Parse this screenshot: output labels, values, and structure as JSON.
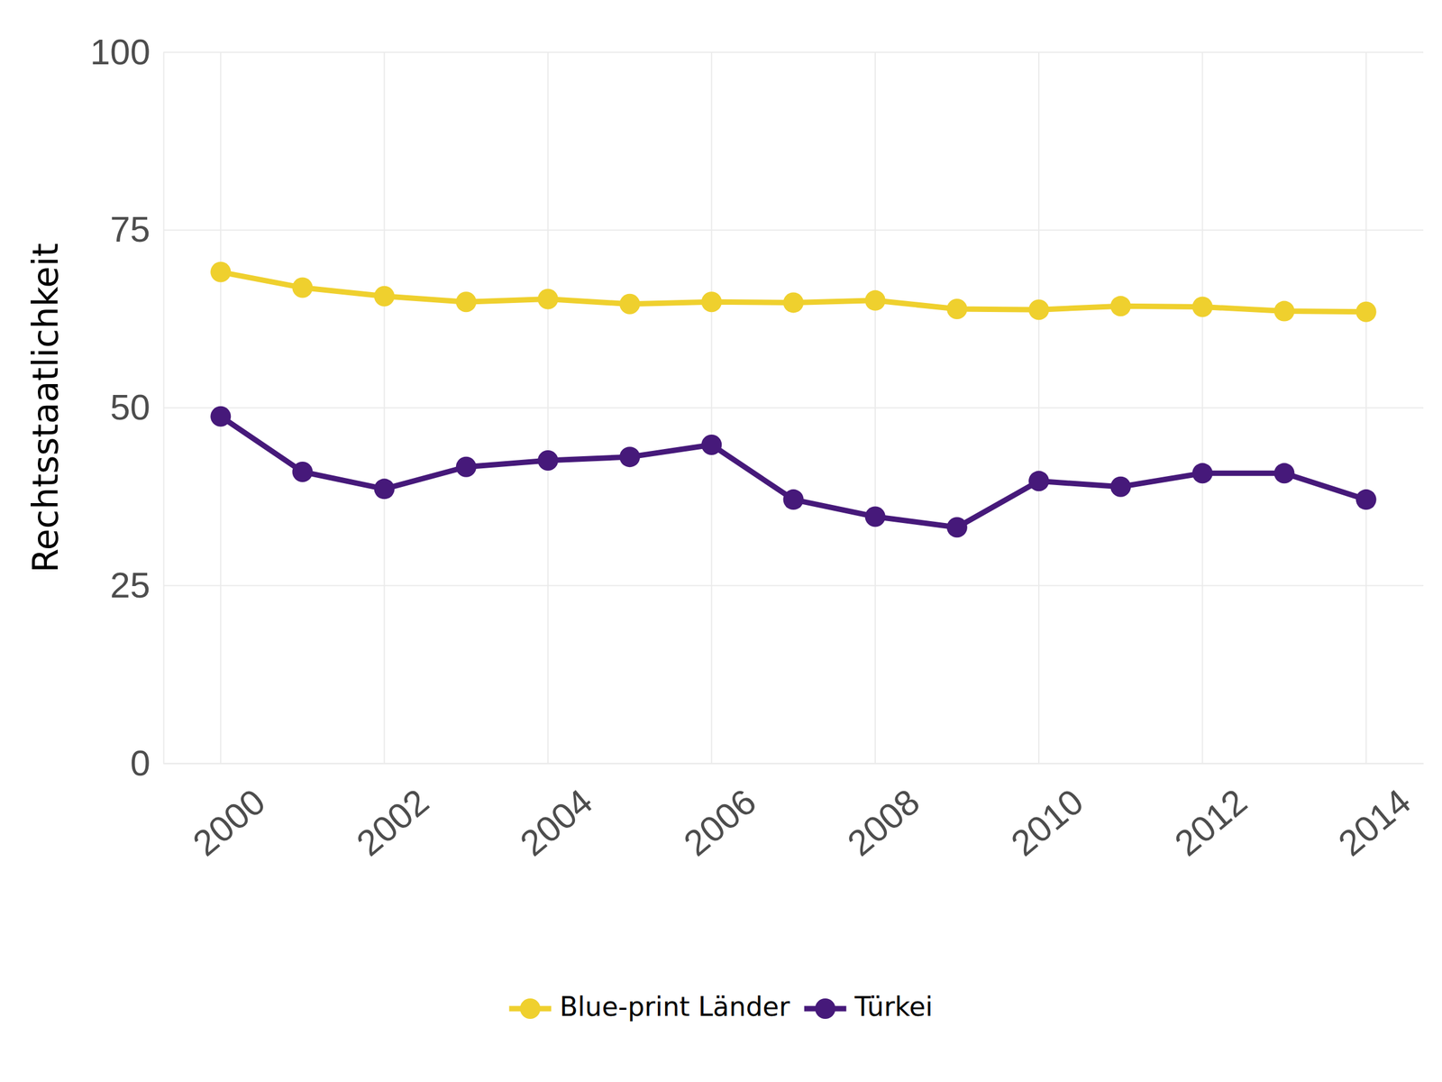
{
  "chart_data": {
    "type": "line",
    "y_label": "Rechtsstaatlichkeit",
    "x": [
      2000,
      2001,
      2002,
      2003,
      2004,
      2005,
      2006,
      2007,
      2008,
      2009,
      2010,
      2011,
      2012,
      2013,
      2014
    ],
    "series": [
      {
        "name": "Blue-print Länder",
        "color": "#EFD02E",
        "marker": "circle",
        "line_style": "solid",
        "values": [
          69.1,
          66.9,
          65.7,
          64.9,
          65.3,
          64.6,
          64.9,
          64.8,
          65.1,
          63.9,
          63.8,
          64.3,
          64.2,
          63.6,
          63.5
        ]
      },
      {
        "name": "Türkei",
        "color": "#46197A",
        "marker": "circle",
        "line_style": "solid",
        "values": [
          48.8,
          41.0,
          38.6,
          41.7,
          42.6,
          43.1,
          44.8,
          37.1,
          34.7,
          33.2,
          39.7,
          38.9,
          40.8,
          40.8,
          37.1
        ]
      }
    ],
    "xlim": [
      1999.3,
      2014.7
    ],
    "xticks": [
      2000,
      2002,
      2004,
      2006,
      2008,
      2010,
      2012,
      2014
    ],
    "ylim": [
      0,
      100
    ],
    "yticks": [
      0,
      25,
      50,
      75,
      100
    ],
    "grid": true,
    "legend": "bottom"
  }
}
